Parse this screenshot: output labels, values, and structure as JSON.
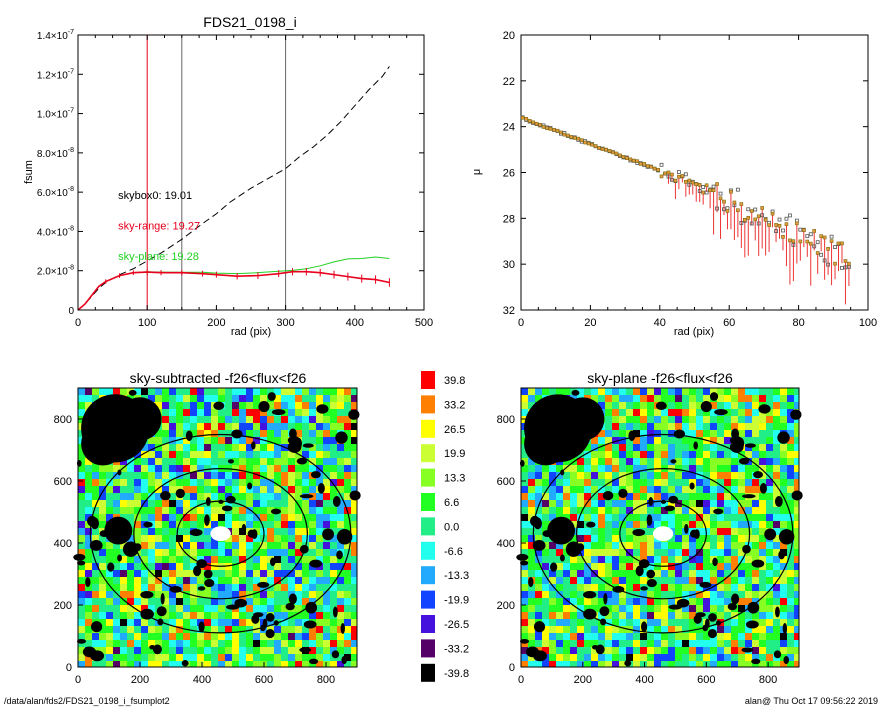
{
  "footer": {
    "path": "/data/alan/fds2/FDS21_0198_i_fsumplot2",
    "stamp": "alan@  Thu Oct 17 09:56:22 2019"
  },
  "chart_data": [
    {
      "type": "line",
      "title": "FDS21_0198_i",
      "xlabel": "rad (pix)",
      "ylabel": "fsum",
      "xlim": [
        0,
        500
      ],
      "ylim": [
        0,
        1.4e-07
      ],
      "xticks": [
        {
          "v": 0,
          "label": "0"
        },
        {
          "v": 100,
          "label": "100"
        },
        {
          "v": 200,
          "label": "200"
        },
        {
          "v": 300,
          "label": "300"
        },
        {
          "v": 400,
          "label": "400"
        },
        {
          "v": 500,
          "label": "500"
        }
      ],
      "yticks": [
        {
          "v": 0,
          "base": "0",
          "exp": ""
        },
        {
          "v": 2e-08,
          "base": "2.0×10",
          "exp": "-8"
        },
        {
          "v": 4e-08,
          "base": "4.0×10",
          "exp": "-8"
        },
        {
          "v": 6e-08,
          "base": "6.0×10",
          "exp": "-8"
        },
        {
          "v": 8e-08,
          "base": "8.0×10",
          "exp": "-8"
        },
        {
          "v": 1e-07,
          "base": "1.0×10",
          "exp": "-7"
        },
        {
          "v": 1.2e-07,
          "base": "1.2×10",
          "exp": "-7"
        },
        {
          "v": 1.4e-07,
          "base": "1.4×10",
          "exp": "-7"
        }
      ],
      "vlines": [
        {
          "x": 100,
          "color": "#e8001c"
        },
        {
          "x": 150,
          "color": "#666666"
        },
        {
          "x": 300,
          "color": "#666666"
        }
      ],
      "annotations": [
        {
          "text": "skybox0: 19.01",
          "color": "#000000",
          "x": 58,
          "y": 5.65e-08
        },
        {
          "text": "sky-range: 19.27",
          "color": "#e8001c",
          "x": 58,
          "y": 4.1e-08
        },
        {
          "text": "sky-plane: 19.28",
          "color": "#22d022",
          "x": 58,
          "y": 2.55e-08
        }
      ],
      "series": [
        {
          "style": "dashed",
          "color": "#000000",
          "x": [
            0,
            10,
            20,
            30,
            40,
            60,
            80,
            100,
            120,
            150,
            180,
            200,
            220,
            250,
            280,
            300,
            320,
            340,
            360,
            380,
            400,
            420,
            440,
            450
          ],
          "y": [
            0,
            3e-09,
            7e-09,
            1.1e-08,
            1.4e-08,
            1.8e-08,
            2.1e-08,
            2.5e-08,
            2.9e-08,
            3.6e-08,
            4.4e-08,
            4.9e-08,
            5.5e-08,
            6.2e-08,
            6.8e-08,
            7.2e-08,
            7.8e-08,
            8.3e-08,
            8.9e-08,
            9.6e-08,
            1.04e-07,
            1.12e-07,
            1.19e-07,
            1.24e-07
          ]
        },
        {
          "style": "solid",
          "color": "#22d022",
          "x": [
            0,
            10,
            20,
            30,
            40,
            60,
            80,
            100,
            120,
            150,
            180,
            200,
            230,
            260,
            290,
            310,
            330,
            350,
            370,
            390,
            410,
            430,
            450
          ],
          "y": [
            0,
            3e-09,
            7.5e-09,
            1.2e-08,
            1.45e-08,
            1.75e-08,
            1.9e-08,
            1.95e-08,
            1.93e-08,
            1.92e-08,
            1.92e-08,
            1.88e-08,
            1.85e-08,
            1.9e-08,
            1.97e-08,
            2.02e-08,
            2.1e-08,
            2.25e-08,
            2.45e-08,
            2.6e-08,
            2.62e-08,
            2.7e-08,
            2.62e-08
          ]
        },
        {
          "style": "solid",
          "color": "#e8001c",
          "errorbars": true,
          "x": [
            0,
            10,
            20,
            30,
            40,
            60,
            80,
            100,
            120,
            150,
            180,
            200,
            230,
            260,
            290,
            310,
            330,
            350,
            370,
            390,
            410,
            430,
            450
          ],
          "y": [
            0,
            3e-09,
            7.5e-09,
            1.2e-08,
            1.45e-08,
            1.75e-08,
            1.9e-08,
            1.93e-08,
            1.9e-08,
            1.9e-08,
            1.85e-08,
            1.8e-08,
            1.72e-08,
            1.75e-08,
            1.85e-08,
            1.95e-08,
            1.95e-08,
            1.9e-08,
            1.8e-08,
            1.7e-08,
            1.6e-08,
            1.55e-08,
            1.4e-08
          ]
        }
      ]
    },
    {
      "type": "scatter",
      "title": "",
      "xlabel": "rad (pix)",
      "ylabel": "μ",
      "xlim": [
        0,
        100
      ],
      "ylim": [
        32,
        20
      ],
      "xticks": [
        0,
        20,
        40,
        60,
        80,
        100
      ],
      "yticks": [
        20,
        22,
        24,
        26,
        28,
        30,
        32
      ]
    },
    {
      "type": "heatmap",
      "title": "sky-subtracted -f26<flux<f26",
      "xlim": [
        0,
        900
      ],
      "ylim": [
        0,
        900
      ],
      "xticks": [
        0,
        200,
        400,
        600,
        800
      ],
      "yticks": [
        0,
        200,
        400,
        600,
        800
      ],
      "center": [
        460,
        430
      ],
      "ellipses": [
        {
          "rx": 420,
          "ry": 320,
          "color": "#000000"
        },
        {
          "rx": 280,
          "ry": 210,
          "color": "#000000"
        },
        {
          "rx": 140,
          "ry": 105,
          "color": "#000000"
        }
      ],
      "masked_blobs": [
        {
          "x": 120,
          "y": 770,
          "r": 110
        },
        {
          "x": 80,
          "y": 720,
          "r": 70
        },
        {
          "x": 200,
          "y": 800,
          "r": 70
        },
        {
          "x": 130,
          "y": 440,
          "r": 45
        },
        {
          "x": 170,
          "y": 380,
          "r": 25
        },
        {
          "x": 860,
          "y": 420,
          "r": 25
        },
        {
          "x": 850,
          "y": 740,
          "r": 20
        },
        {
          "x": 600,
          "y": 840,
          "r": 18
        },
        {
          "x": 330,
          "y": 560,
          "r": 15
        },
        {
          "x": 420,
          "y": 300,
          "r": 14
        },
        {
          "x": 560,
          "y": 430,
          "r": 13
        },
        {
          "x": 730,
          "y": 380,
          "r": 14
        },
        {
          "x": 270,
          "y": 180,
          "r": 16
        },
        {
          "x": 60,
          "y": 130,
          "r": 18
        },
        {
          "x": 620,
          "y": 160,
          "r": 14
        }
      ]
    },
    {
      "type": "heatmap",
      "title": "sky-plane -f26<flux<f26",
      "xlim": [
        0,
        900
      ],
      "ylim": [
        0,
        900
      ],
      "xticks": [
        0,
        200,
        400,
        600,
        800
      ],
      "yticks": [
        0,
        200,
        400,
        600,
        800
      ]
    },
    {
      "type": "colorbar",
      "levels": [
        {
          "label": "39.8",
          "color": "#ff0000"
        },
        {
          "label": "33.2",
          "color": "#ff7f00"
        },
        {
          "label": "26.5",
          "color": "#ffff00"
        },
        {
          "label": "19.9",
          "color": "#ccff33"
        },
        {
          "label": "13.3",
          "color": "#88ff22"
        },
        {
          "label": "6.6",
          "color": "#22ff22"
        },
        {
          "label": "0.0",
          "color": "#22ee88"
        },
        {
          "label": "-6.6",
          "color": "#22ffee"
        },
        {
          "label": "-13.3",
          "color": "#22aaff"
        },
        {
          "label": "-19.9",
          "color": "#1144ff"
        },
        {
          "label": "-26.5",
          "color": "#4411dd"
        },
        {
          "label": "-33.2",
          "color": "#550066"
        },
        {
          "label": "-39.8",
          "color": "#000000"
        }
      ]
    }
  ]
}
